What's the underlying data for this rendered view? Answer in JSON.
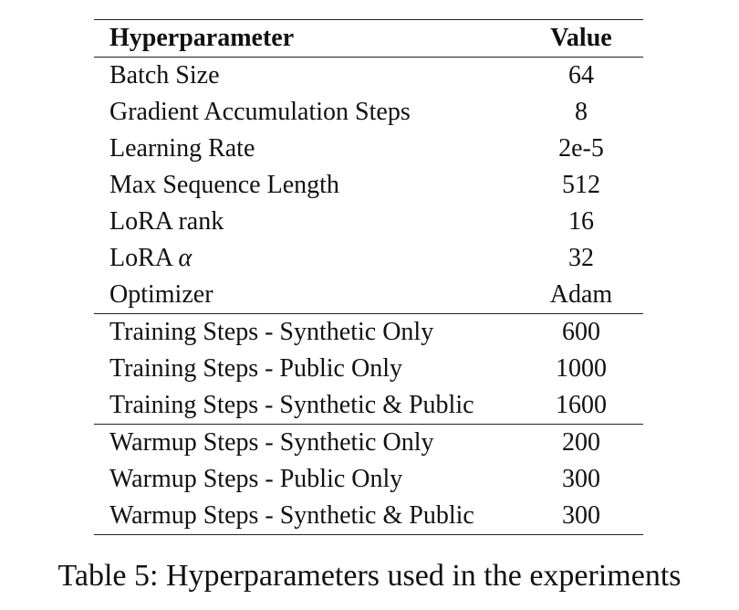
{
  "table": {
    "headers": {
      "name": "Hyperparameter",
      "value": "Value"
    },
    "groups": [
      {
        "rows": [
          {
            "name": "Batch Size",
            "value": "64"
          },
          {
            "name": "Gradient Accumulation Steps",
            "value": "8"
          },
          {
            "name": "Learning Rate",
            "value": "2e-5"
          },
          {
            "name": "Max Sequence Length",
            "value": "512"
          },
          {
            "name": "LoRA rank",
            "value": "16"
          },
          {
            "name": "LoRA α",
            "value": "32"
          },
          {
            "name": "Optimizer",
            "value": "Adam"
          }
        ]
      },
      {
        "rows": [
          {
            "name": "Training Steps - Synthetic Only",
            "value": "600"
          },
          {
            "name": "Training Steps - Public Only",
            "value": "1000"
          },
          {
            "name": "Training Steps - Synthetic & Public",
            "value": "1600"
          }
        ]
      },
      {
        "rows": [
          {
            "name": "Warmup Steps - Synthetic Only",
            "value": "200"
          },
          {
            "name": "Warmup Steps - Public Only",
            "value": "300"
          },
          {
            "name": "Warmup Steps - Synthetic & Public",
            "value": "300"
          }
        ]
      }
    ]
  },
  "caption": "Table 5: Hyperparameters used in the experiments"
}
